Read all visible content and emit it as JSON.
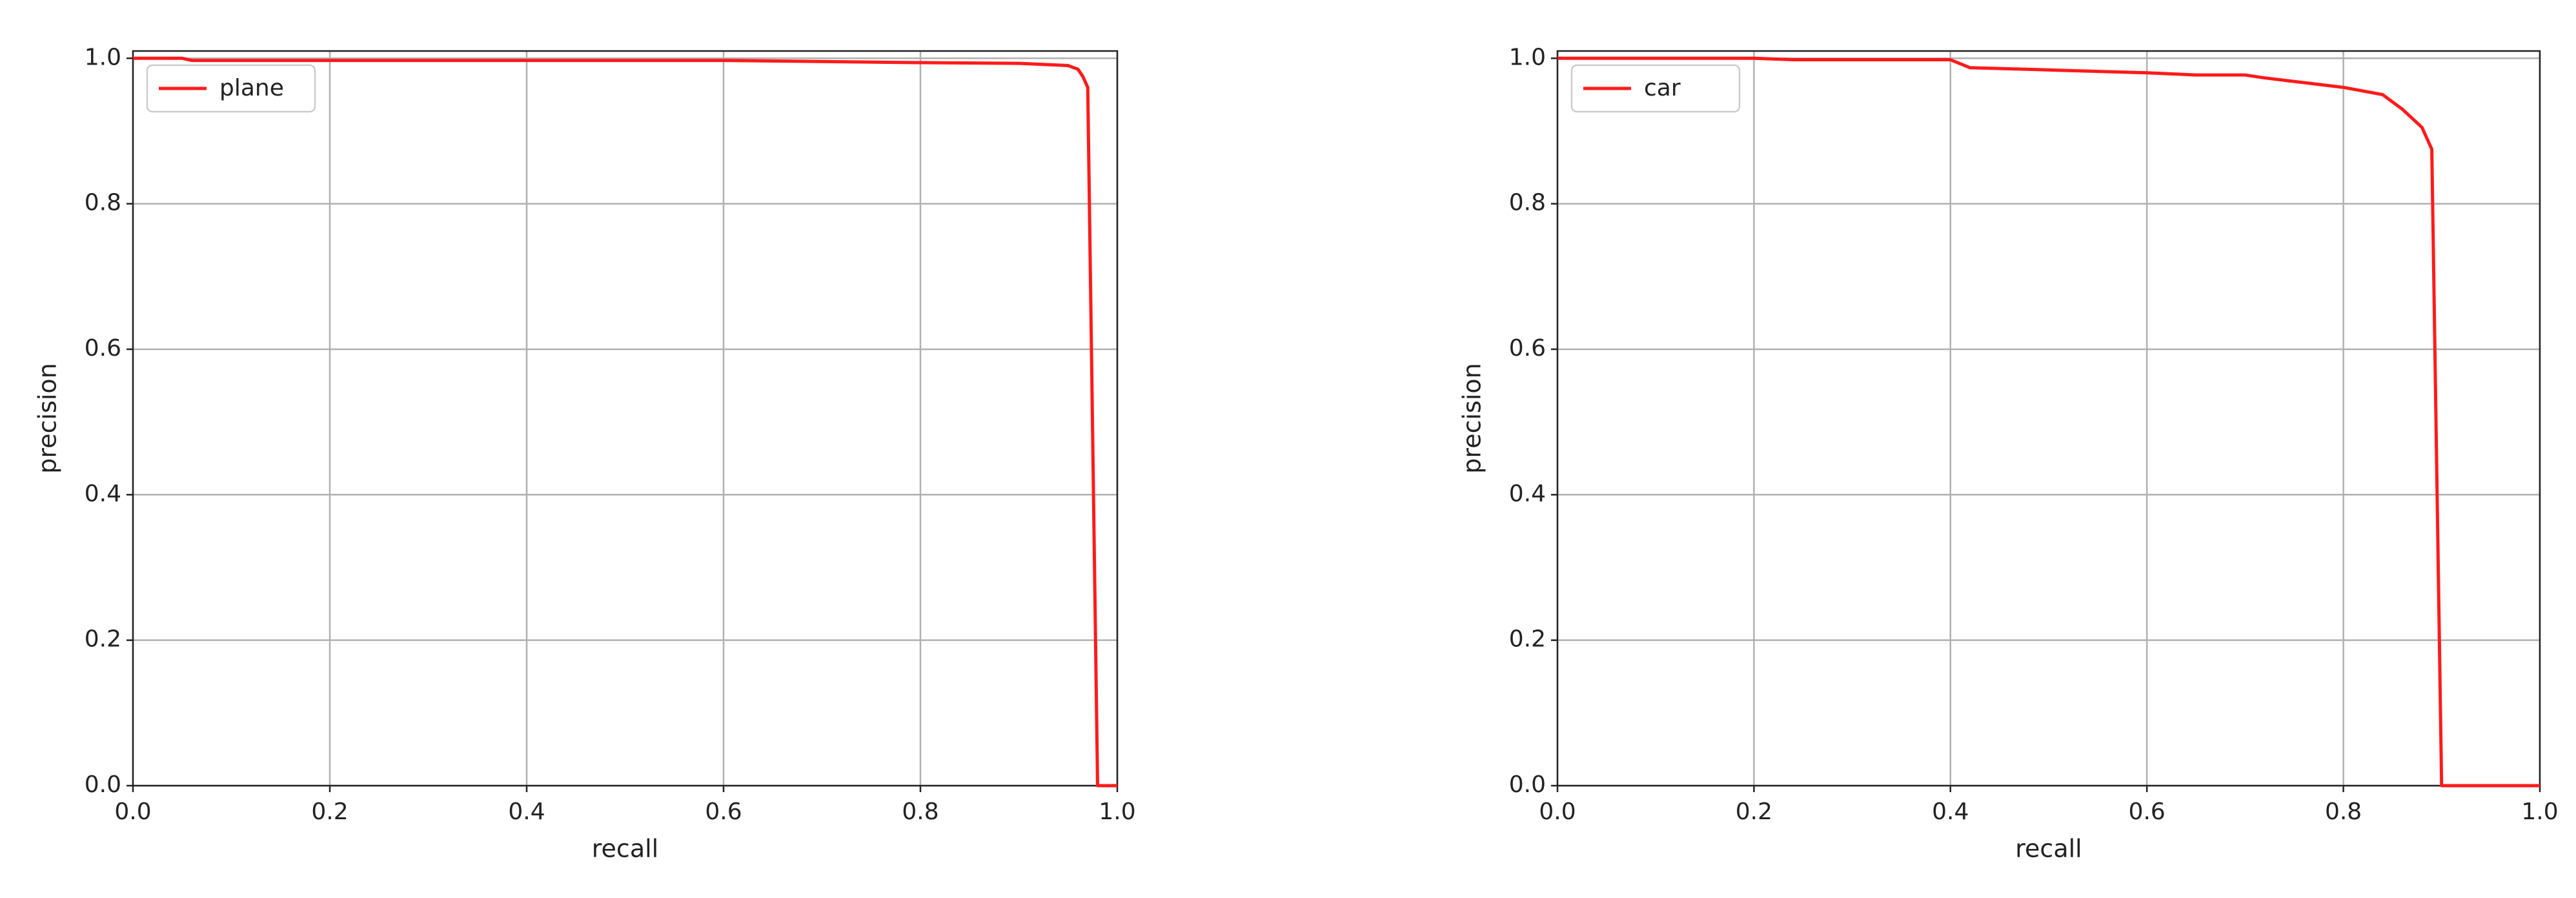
{
  "chart_data": [
    {
      "type": "line",
      "xlabel": "recall",
      "ylabel": "precision",
      "x": [
        0,
        0.05,
        0.06,
        0.2,
        0.4,
        0.6,
        0.8,
        0.9,
        0.95,
        0.96,
        0.965,
        0.97,
        0.98,
        1.0
      ],
      "series": [
        {
          "name": "plane",
          "color": "#ff1a1a",
          "values": [
            1.0,
            1.0,
            0.997,
            0.997,
            0.997,
            0.997,
            0.994,
            0.993,
            0.99,
            0.985,
            0.975,
            0.96,
            0.0,
            0.0
          ]
        }
      ],
      "xlim": [
        0,
        1.0
      ],
      "ylim": [
        0,
        1.01
      ],
      "xticks": [
        {
          "value": 0,
          "label": "0.0"
        },
        0.2,
        0.4,
        0.6,
        0.8,
        {
          "value": 1,
          "label": "1.0"
        }
      ],
      "yticks": [
        {
          "value": 0,
          "label": "0.0"
        },
        0.2,
        0.4,
        0.6,
        0.8,
        {
          "value": 1,
          "label": "1.0"
        }
      ],
      "grid": true,
      "legend": "upper left"
    },
    {
      "type": "line",
      "xlabel": "recall",
      "ylabel": "precision",
      "x": [
        0,
        0.2,
        0.24,
        0.4,
        0.42,
        0.5,
        0.6,
        0.65,
        0.7,
        0.72,
        0.8,
        0.84,
        0.86,
        0.88,
        0.89,
        0.9,
        1.0
      ],
      "series": [
        {
          "name": "car",
          "color": "#ff1a1a",
          "values": [
            1.0,
            1.0,
            0.998,
            0.998,
            0.987,
            0.984,
            0.98,
            0.977,
            0.977,
            0.973,
            0.96,
            0.95,
            0.93,
            0.905,
            0.875,
            0.0,
            0.0
          ]
        }
      ],
      "xlim": [
        0,
        1.0
      ],
      "ylim": [
        0,
        1.01
      ],
      "xticks": [
        {
          "value": 0,
          "label": "0.0"
        },
        0.2,
        0.4,
        0.6,
        0.8,
        {
          "value": 1,
          "label": "1.0"
        }
      ],
      "yticks": [
        {
          "value": 0,
          "label": "0.0"
        },
        0.2,
        0.4,
        0.6,
        0.8,
        {
          "value": 1,
          "label": "1.0"
        }
      ],
      "grid": true,
      "legend": "upper left"
    }
  ]
}
